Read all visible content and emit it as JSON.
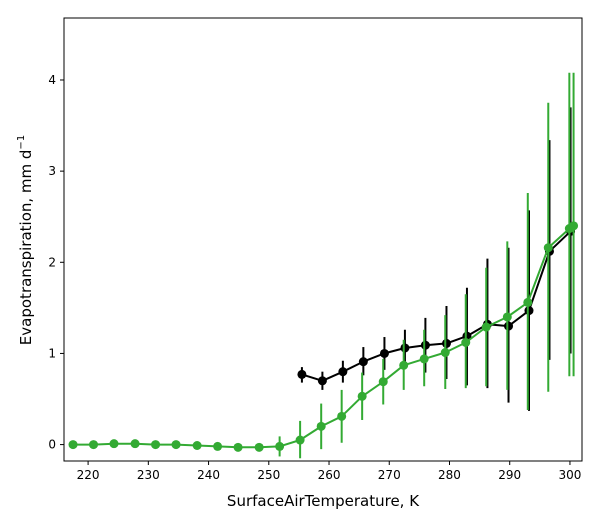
{
  "chart_data": {
    "type": "line",
    "title": "",
    "xlabel": "SurfaceAirTemperature,  K",
    "ylabel_text": "Evapotranspiration,  mm d",
    "ylabel_sup": "−1",
    "xlim": [
      216,
      302
    ],
    "ylim": [
      -0.18,
      4.68
    ],
    "xticks": [
      220,
      230,
      240,
      250,
      260,
      270,
      280,
      290,
      300
    ],
    "yticks": [
      0,
      1,
      2,
      3,
      4
    ],
    "grid": false,
    "legend": "none",
    "series": [
      {
        "color": "#000000",
        "x": [
          255.5,
          258.9,
          262.3,
          265.7,
          269.2,
          272.6,
          276.0,
          279.5,
          282.9,
          286.3,
          289.8,
          293.2,
          296.6,
          300.1
        ],
        "y": [
          0.77,
          0.7,
          0.8,
          0.91,
          1.0,
          1.06,
          1.09,
          1.11,
          1.19,
          1.32,
          1.3,
          1.47,
          2.12,
          2.34
        ],
        "yerr_low": [
          0.68,
          0.6,
          0.68,
          0.76,
          0.82,
          0.86,
          0.79,
          0.72,
          0.65,
          0.62,
          0.46,
          0.37,
          0.93,
          1.0
        ],
        "yerr_high": [
          0.85,
          0.8,
          0.92,
          1.07,
          1.18,
          1.26,
          1.39,
          1.52,
          1.72,
          2.04,
          2.16,
          2.57,
          3.34,
          3.7
        ]
      },
      {
        "color": "#33aa33",
        "x": [
          217.5,
          220.9,
          224.3,
          227.8,
          231.2,
          234.6,
          238.1,
          241.5,
          244.9,
          248.4,
          251.8,
          255.2,
          258.7,
          262.1,
          265.5,
          269.0,
          272.4,
          275.8,
          279.3,
          282.7,
          286.1,
          289.6,
          293.0,
          296.4,
          299.9,
          300.6
        ],
        "y": [
          0.0,
          0.0,
          0.01,
          0.01,
          0.0,
          0.0,
          -0.01,
          -0.02,
          -0.03,
          -0.03,
          -0.02,
          0.05,
          0.2,
          0.31,
          0.53,
          0.69,
          0.87,
          0.94,
          1.01,
          1.12,
          1.29,
          1.4,
          1.56,
          2.16,
          2.37,
          2.4
        ],
        "yerr_low": [
          0.0,
          0.0,
          0.0,
          0.0,
          0.0,
          0.0,
          0.0,
          -0.03,
          -0.05,
          -0.07,
          -0.13,
          -0.15,
          -0.05,
          0.02,
          0.27,
          0.44,
          0.6,
          0.64,
          0.61,
          0.62,
          0.64,
          0.6,
          0.38,
          0.58,
          0.75,
          0.75
        ],
        "yerr_high": [
          0.0,
          0.0,
          0.0,
          0.0,
          0.0,
          0.0,
          0.0,
          0.0,
          0.0,
          0.01,
          0.09,
          0.26,
          0.45,
          0.6,
          0.79,
          0.94,
          1.15,
          1.26,
          1.42,
          1.65,
          1.94,
          2.23,
          2.76,
          3.75,
          4.08,
          4.08
        ]
      }
    ]
  }
}
